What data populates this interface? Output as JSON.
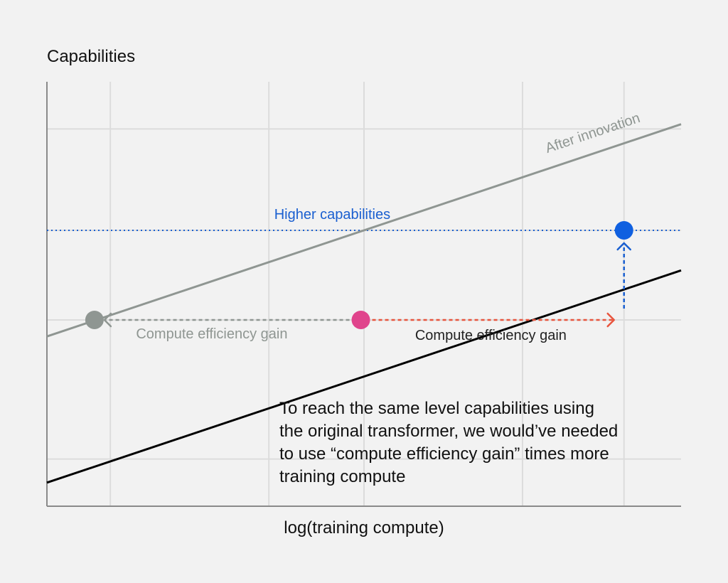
{
  "chart_data": {
    "type": "line",
    "ylabel": "Capabilities",
    "xlabel": "log(training compute)",
    "grid": true,
    "series": [
      {
        "name": "After innovation",
        "color": "#8f9692",
        "from": [
          0,
          3.6
        ],
        "to": [
          10,
          8.1
        ]
      },
      {
        "name": "",
        "color": "#000000",
        "from": [
          0,
          0.5
        ],
        "to": [
          10,
          5.0
        ]
      }
    ],
    "points": [
      {
        "x": 0.75,
        "y": 3.95,
        "color": "#8f9692"
      },
      {
        "x": 4.95,
        "y": 3.95,
        "color": "#e0448c"
      },
      {
        "x": 9.1,
        "y": 5.85,
        "color": "#1060e0"
      }
    ],
    "reference_line": {
      "y": 5.85,
      "label": "Higher capabilities",
      "color": "#1a5fd0"
    },
    "arrows": [
      {
        "label": "Compute efficiency gain",
        "from": [
          4.95,
          3.95
        ],
        "to": [
          0.75,
          3.95
        ],
        "color": "#8f9692"
      },
      {
        "label": "Compute efficiency gain",
        "from": [
          4.95,
          3.95
        ],
        "to": [
          9.1,
          3.95
        ],
        "color": "#e8553e"
      },
      {
        "label": "",
        "from": [
          9.1,
          3.95
        ],
        "to": [
          9.1,
          5.85
        ],
        "color": "#1a5fd0"
      }
    ],
    "annotation": [
      "To reach the same level capabilities using",
      "the original transformer, we would’ve needed",
      "to use “compute efficiency gain” times more",
      "training compute"
    ],
    "xlim": [
      0,
      10
    ],
    "ylim": [
      0,
      9
    ]
  }
}
